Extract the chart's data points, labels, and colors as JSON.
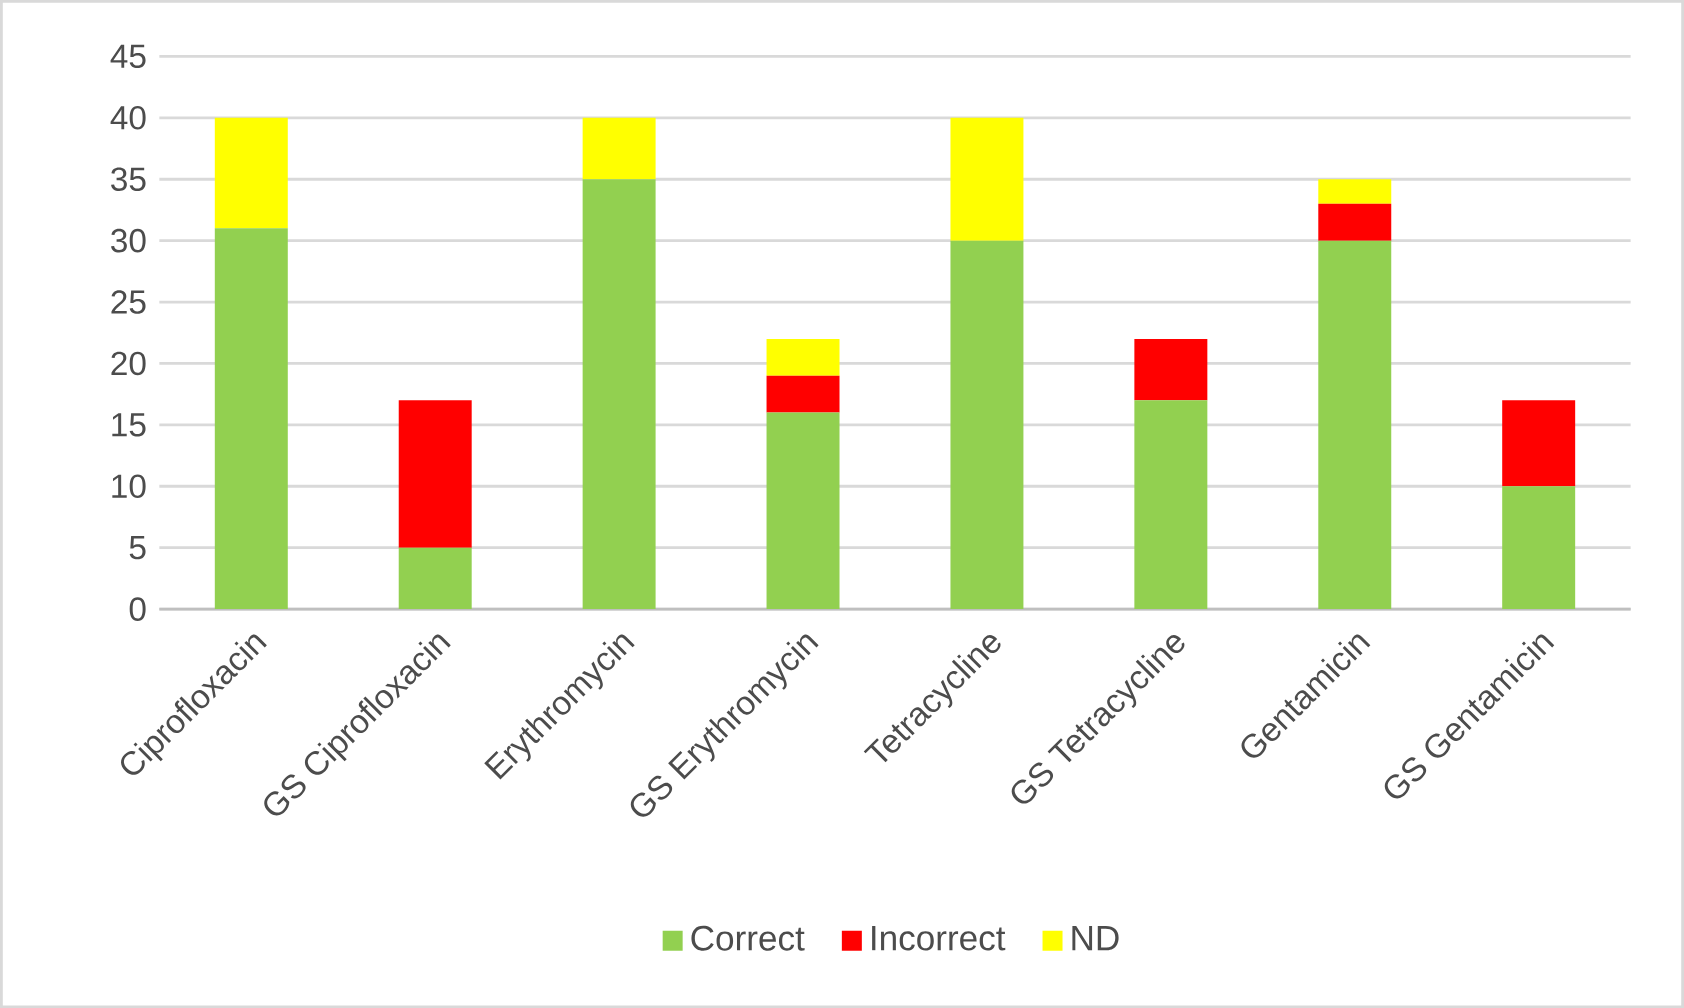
{
  "chart_data": {
    "type": "bar",
    "stacked": true,
    "categories": [
      "Ciprofloxacin",
      "GS Ciprofloxacin",
      "Erythromycin",
      "GS Erythromycin",
      "Tetracycline",
      "GS Tetracycline",
      "Gentamicin",
      "GS Gentamicin"
    ],
    "series": [
      {
        "name": "Correct",
        "color": "#92d050",
        "values": [
          31,
          5,
          35,
          16,
          30,
          17,
          30,
          10
        ]
      },
      {
        "name": "Incorrect",
        "color": "#ff0000",
        "values": [
          0,
          12,
          0,
          3,
          0,
          5,
          3,
          7
        ]
      },
      {
        "name": "ND",
        "color": "#ffff00",
        "values": [
          9,
          0,
          5,
          3,
          10,
          0,
          2,
          0
        ]
      }
    ],
    "ylim": [
      0,
      45
    ],
    "yticks": [
      0,
      5,
      10,
      15,
      20,
      25,
      30,
      35,
      40,
      45
    ],
    "grid": "y",
    "legend": "bottom"
  }
}
